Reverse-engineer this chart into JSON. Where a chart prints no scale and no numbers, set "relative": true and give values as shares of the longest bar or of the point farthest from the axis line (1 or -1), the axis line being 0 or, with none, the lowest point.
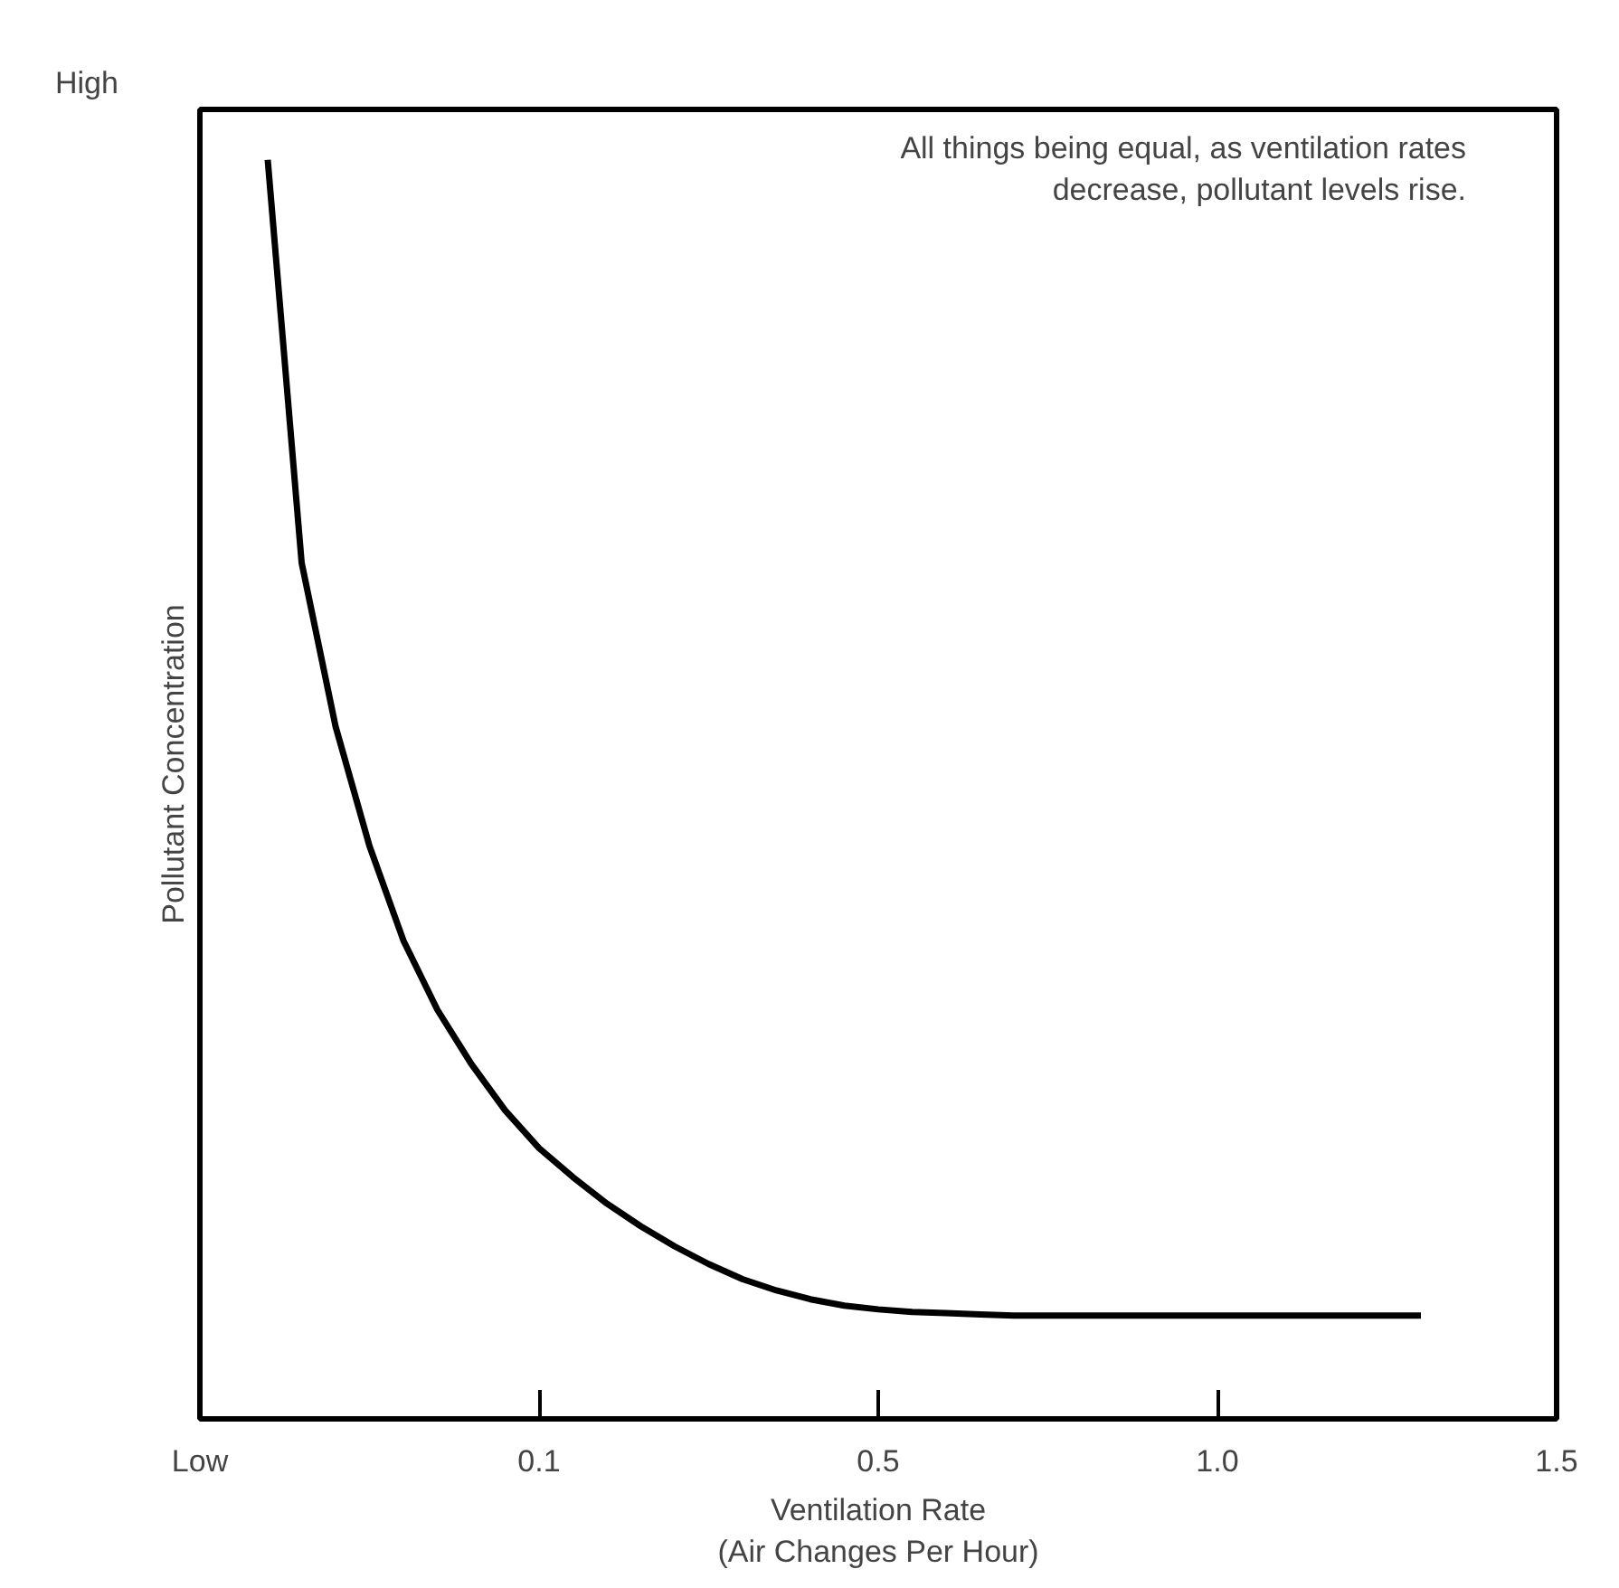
{
  "chart_data": {
    "type": "line",
    "relative": true,
    "xlabel": "Ventilation Rate\n(Air Changes Per Hour)",
    "ylabel": "Pollutant Concentration",
    "annotations": [
      "High",
      "All things being equal, as ventilation rates\ndecrease, pollutant levels rise."
    ],
    "categories": [
      "Low",
      null,
      null,
      null,
      null,
      null,
      null,
      null,
      null,
      null,
      "0.1",
      null,
      null,
      null,
      null,
      null,
      null,
      null,
      null,
      null,
      "0.5",
      null,
      null,
      null,
      null,
      null,
      null,
      null,
      null,
      null,
      "1.0",
      null,
      null,
      null,
      null,
      null,
      null,
      null,
      null,
      null,
      "1.5"
    ],
    "series": [
      {
        "color": "#000000",
        "values": [
          null,
          null,
          1.0,
          0.68,
          0.55,
          0.455,
          0.38,
          0.325,
          0.282,
          0.245,
          0.215,
          0.192,
          0.171,
          0.153,
          0.137,
          0.123,
          0.111,
          0.102,
          0.095,
          0.09,
          0.087,
          0.085,
          0.084,
          0.083,
          0.082,
          0.082,
          0.082,
          0.082,
          0.082,
          0.082,
          0.082,
          0.082,
          0.082,
          0.082,
          0.082,
          0.082,
          0.082,
          null,
          null,
          null,
          null
        ]
      }
    ],
    "grid": false,
    "marker": "none",
    "line_style": "solid"
  }
}
